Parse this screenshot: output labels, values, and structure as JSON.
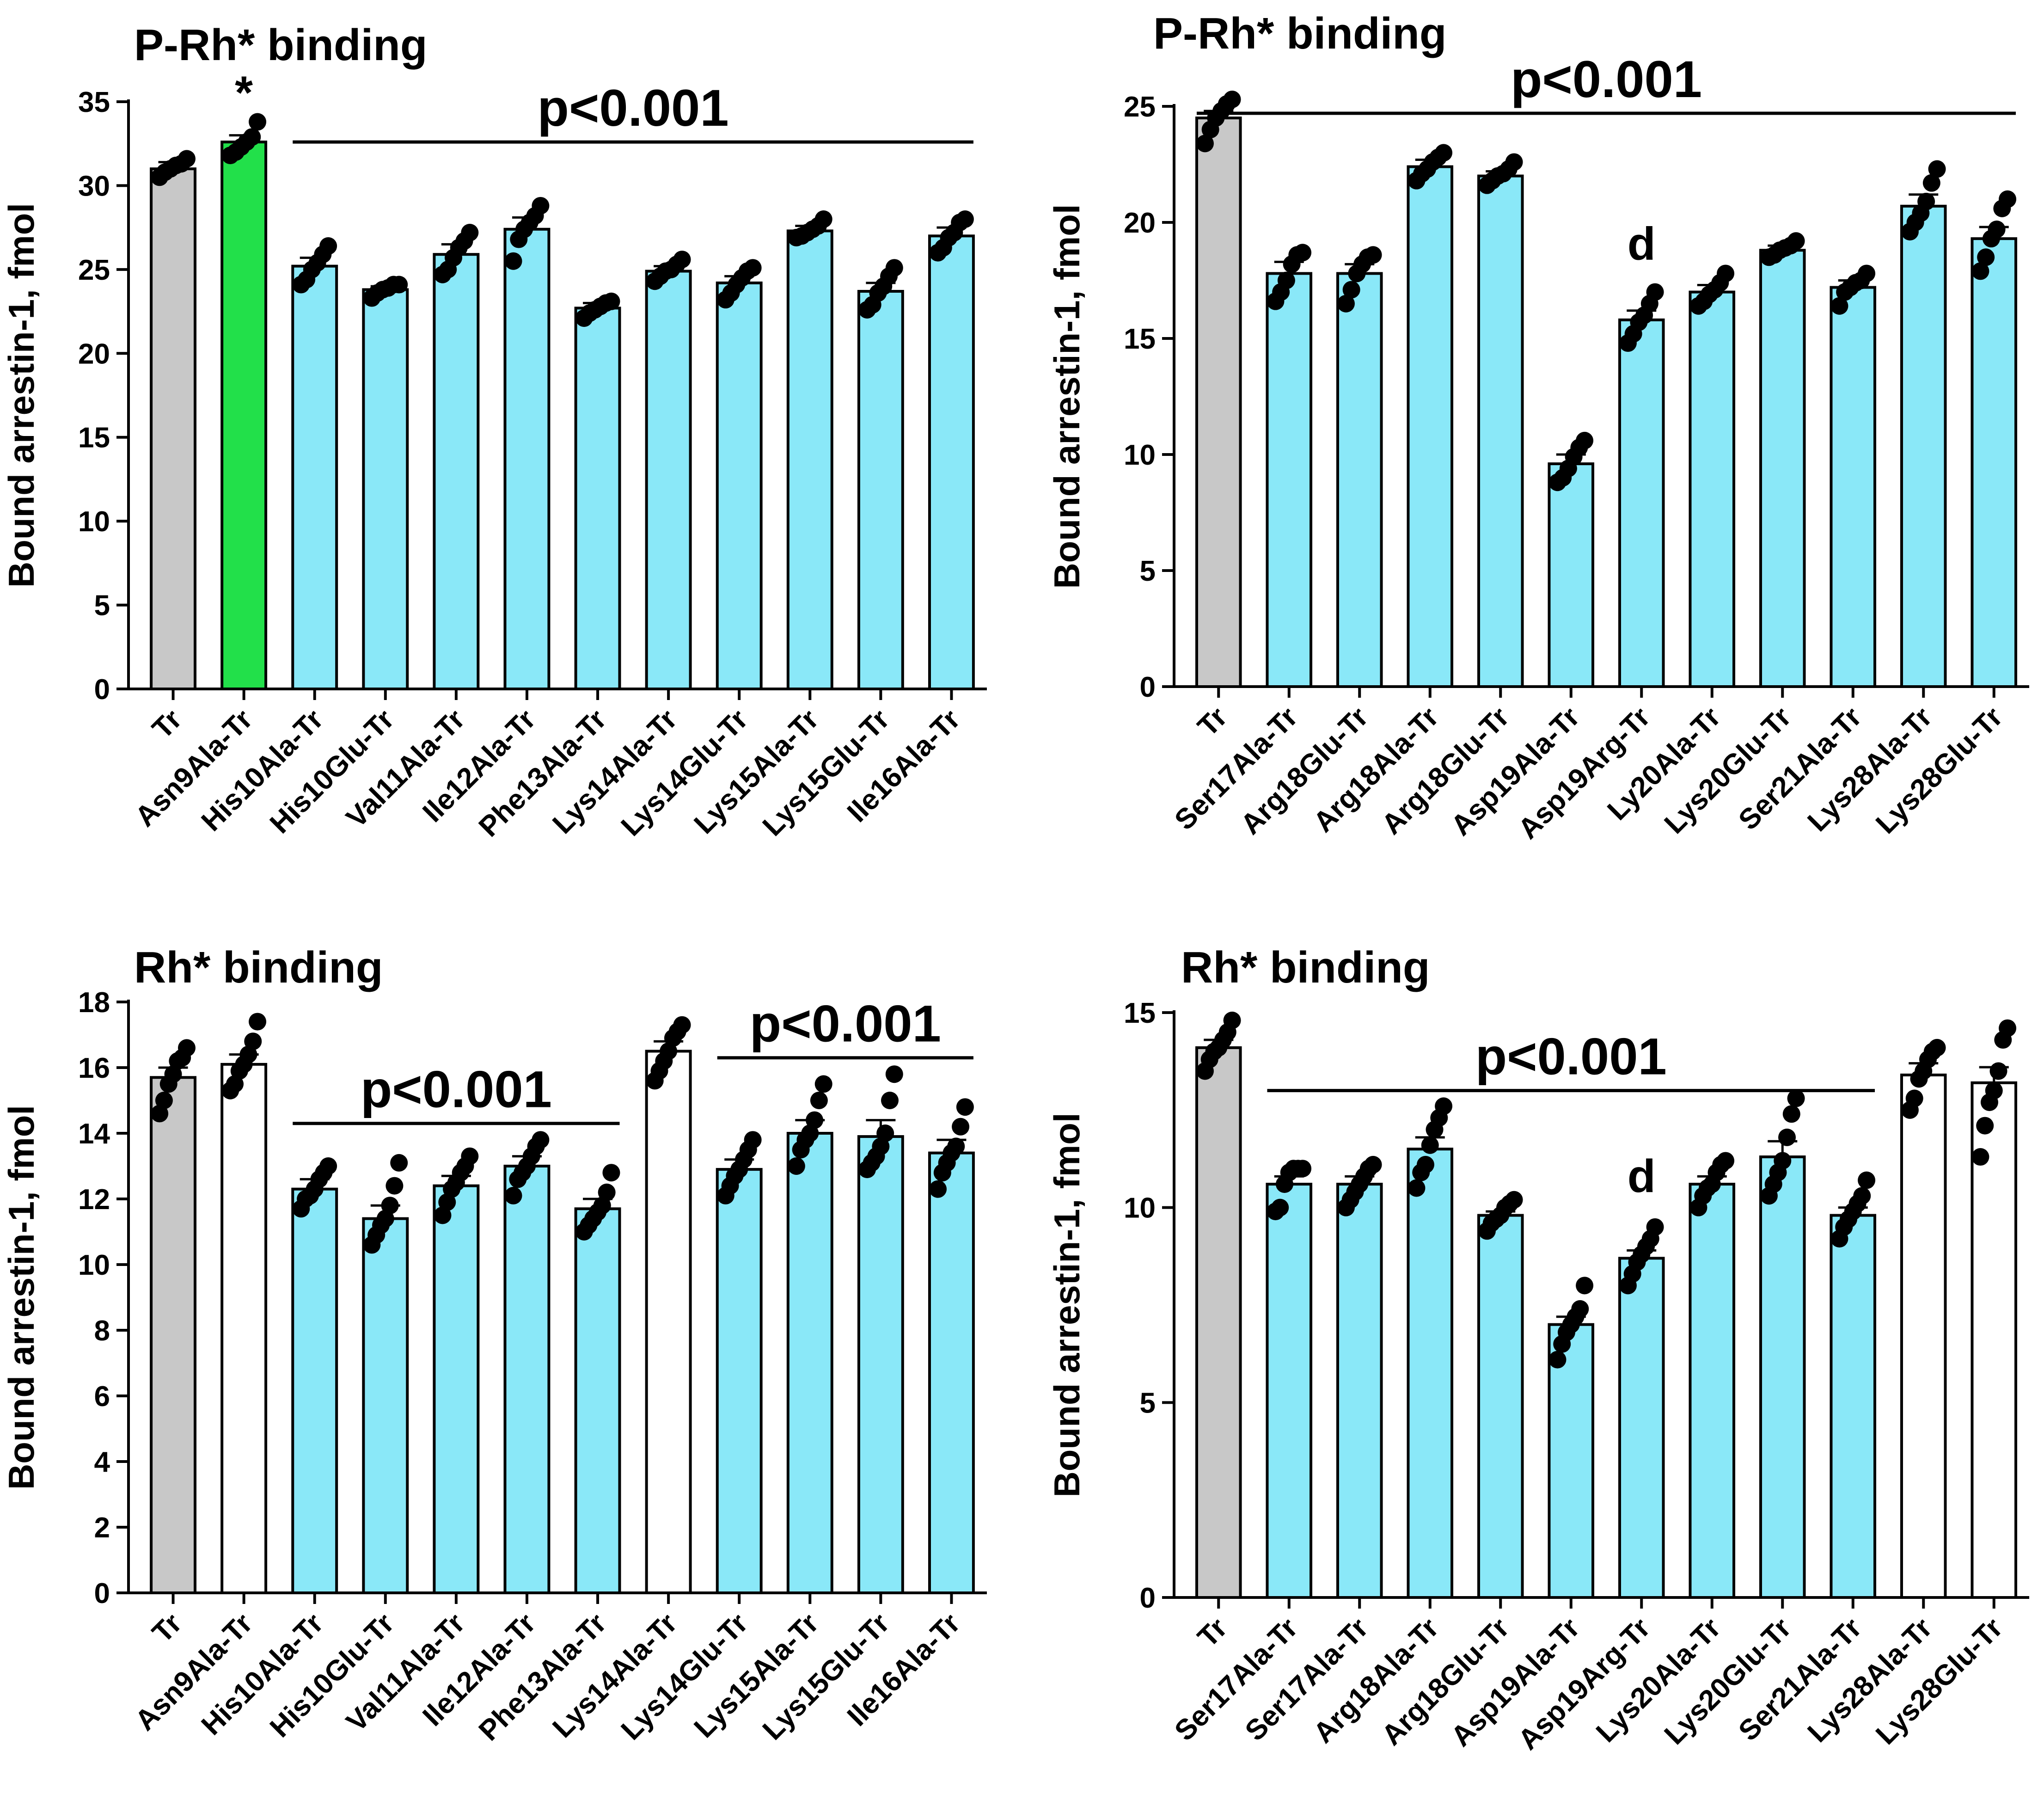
{
  "colors": {
    "control": "#c8c8c8",
    "mutant": "#8ae8f8",
    "enhanced": "#22e04a",
    "white": "#ffffff",
    "ink": "#000000"
  },
  "chart_data": [
    {
      "type": "bar",
      "panel": "top-left",
      "title": "P-Rh* binding",
      "ylabel": "Bound arrestin-1,  fmol",
      "ylim": [
        0,
        35
      ],
      "yticks": [
        0,
        5,
        10,
        15,
        20,
        25,
        30,
        35
      ],
      "categories": [
        "Tr",
        "Asn9Ala-Tr",
        "His10Ala-Tr",
        "His10Glu-Tr",
        "Val11Ala-Tr",
        "Ile12Ala-Tr",
        "Phe13Ala-Tr",
        "Lys14Ala-Tr",
        "Lys14Glu-Tr",
        "Lys15Ala-Tr",
        "Lys15Glu-Tr",
        "Ile16Ala-Tr"
      ],
      "values": [
        31.0,
        32.6,
        25.2,
        23.8,
        25.9,
        27.4,
        22.7,
        24.9,
        24.2,
        27.3,
        23.7,
        27.0
      ],
      "errors": [
        0.4,
        0.4,
        0.5,
        0.2,
        0.6,
        0.7,
        0.3,
        0.3,
        0.4,
        0.3,
        0.5,
        0.5
      ],
      "colors": [
        "control",
        "enhanced",
        "mutant",
        "mutant",
        "mutant",
        "mutant",
        "mutant",
        "mutant",
        "mutant",
        "mutant",
        "mutant",
        "mutant"
      ],
      "points": [
        [
          30.5,
          30.8,
          31.0,
          31.2,
          31.3,
          31.6
        ],
        [
          31.8,
          32.0,
          32.3,
          32.6,
          32.9,
          33.8
        ],
        [
          24.1,
          24.4,
          25.0,
          25.4,
          25.9,
          26.4
        ],
        [
          23.3,
          23.6,
          23.8,
          23.9,
          24.1,
          24.1
        ],
        [
          24.7,
          25.0,
          25.7,
          26.3,
          26.7,
          27.2
        ],
        [
          25.5,
          26.8,
          27.4,
          27.8,
          28.2,
          28.8
        ],
        [
          22.1,
          22.4,
          22.6,
          22.8,
          23.0,
          23.1
        ],
        [
          24.3,
          24.6,
          24.9,
          25.0,
          25.3,
          25.6
        ],
        [
          23.2,
          23.6,
          24.1,
          24.5,
          24.9,
          25.1
        ],
        [
          26.9,
          27.0,
          27.2,
          27.4,
          27.6,
          28.0
        ],
        [
          22.6,
          22.9,
          23.6,
          24.0,
          24.6,
          25.1
        ],
        [
          26.0,
          26.3,
          26.9,
          27.2,
          27.8,
          28.0
        ]
      ],
      "annotations": [
        {
          "text": "*",
          "category": "Asn9Ala-Tr",
          "value": 34.6
        }
      ],
      "sig_lines": [
        {
          "text": "p<0.001",
          "from": "His10Ala-Tr",
          "to": "Ile16Ala-Tr",
          "value": 32.6
        }
      ]
    },
    {
      "type": "bar",
      "panel": "top-right",
      "title": "P-Rh* binding",
      "ylabel": "Bound arrestin-1,  fmol",
      "ylim": [
        0,
        25
      ],
      "yticks": [
        0,
        5,
        10,
        15,
        20,
        25
      ],
      "categories": [
        "Tr",
        "Ser17Ala-Tr",
        "Arg18Glu-Tr",
        "Arg18Ala-Tr",
        "Arg18Glu-Tr",
        "Asp19Ala-Tr",
        "Asp19Arg-Tr",
        "Ly20Ala-Tr",
        "Lys20Glu-Tr",
        "Ser21Ala-Tr",
        "Lys28Ala-Tr",
        "Lys28Glu-Tr"
      ],
      "values": [
        24.5,
        17.8,
        17.8,
        22.4,
        22.0,
        9.6,
        15.8,
        17.0,
        18.8,
        17.2,
        20.7,
        19.3
      ],
      "errors": [
        0.3,
        0.5,
        0.4,
        0.3,
        0.2,
        0.4,
        0.4,
        0.3,
        0.2,
        0.3,
        0.5,
        0.5
      ],
      "colors": [
        "control",
        "mutant",
        "mutant",
        "mutant",
        "mutant",
        "mutant",
        "mutant",
        "mutant",
        "mutant",
        "mutant",
        "mutant",
        "mutant"
      ],
      "points": [
        [
          23.4,
          24.0,
          24.5,
          24.8,
          25.1,
          25.3
        ],
        [
          16.6,
          17.0,
          17.5,
          18.2,
          18.6,
          18.7
        ],
        [
          16.5,
          17.1,
          17.8,
          18.2,
          18.5,
          18.6
        ],
        [
          21.8,
          22.1,
          22.3,
          22.6,
          22.8,
          23.0
        ],
        [
          21.6,
          21.8,
          22.0,
          22.1,
          22.3,
          22.6
        ],
        [
          8.8,
          9.0,
          9.4,
          9.9,
          10.3,
          10.6
        ],
        [
          14.8,
          15.2,
          15.7,
          16.0,
          16.5,
          17.0
        ],
        [
          16.4,
          16.6,
          16.9,
          17.1,
          17.4,
          17.8
        ],
        [
          18.5,
          18.6,
          18.8,
          18.9,
          19.0,
          19.2
        ],
        [
          16.4,
          17.0,
          17.2,
          17.4,
          17.5,
          17.8
        ],
        [
          19.6,
          20.0,
          20.4,
          20.9,
          21.7,
          22.3
        ],
        [
          17.9,
          18.5,
          19.3,
          19.7,
          20.6,
          21.0
        ]
      ],
      "annotations": [
        {
          "text": "d",
          "category": "Asp19Arg-Tr",
          "value": 18.4
        }
      ],
      "sig_lines": [
        {
          "text": "p<0.001",
          "from": "Tr",
          "to": "Lys28Glu-Tr",
          "value": 24.7
        }
      ]
    },
    {
      "type": "bar",
      "panel": "bottom-left",
      "title": "Rh* binding",
      "ylabel": "Bound arrestin-1,  fmol",
      "ylim": [
        0,
        18
      ],
      "yticks": [
        0,
        2,
        4,
        6,
        8,
        10,
        12,
        14,
        16,
        18
      ],
      "categories": [
        "Tr",
        "Asn9Ala-Tr",
        "His10Ala-Tr",
        "His10Glu-Tr",
        "Val11Ala-Tr",
        "Ile12Ala-Tr",
        "Phe13Ala-Tr",
        "Lys14Ala-Tr",
        "Lys14Glu-Tr",
        "Lys15Ala-Tr",
        "Lys15Glu-Tr",
        "Ile16Ala-Tr"
      ],
      "values": [
        15.7,
        16.1,
        12.3,
        11.4,
        12.4,
        13.0,
        11.7,
        16.5,
        12.9,
        14.0,
        13.9,
        13.4
      ],
      "errors": [
        0.3,
        0.3,
        0.3,
        0.4,
        0.3,
        0.3,
        0.3,
        0.3,
        0.3,
        0.4,
        0.5,
        0.4
      ],
      "colors": [
        "control",
        "white",
        "mutant",
        "mutant",
        "mutant",
        "mutant",
        "mutant",
        "white",
        "mutant",
        "mutant",
        "mutant",
        "mutant"
      ],
      "points": [
        [
          14.6,
          15.0,
          15.5,
          15.8,
          16.2,
          16.3,
          16.6
        ],
        [
          15.3,
          15.5,
          15.9,
          16.1,
          16.4,
          16.8,
          17.4
        ],
        [
          11.7,
          12.0,
          12.1,
          12.3,
          12.6,
          12.8,
          13.0
        ],
        [
          10.6,
          10.9,
          11.2,
          11.4,
          11.8,
          12.4,
          13.1
        ],
        [
          11.5,
          11.9,
          12.3,
          12.5,
          12.8,
          13.0,
          13.3
        ],
        [
          12.1,
          12.6,
          12.8,
          13.0,
          13.3,
          13.6,
          13.8
        ],
        [
          11.0,
          11.2,
          11.4,
          11.6,
          11.8,
          12.2,
          12.8
        ],
        [
          15.6,
          15.9,
          16.2,
          16.5,
          16.9,
          17.1,
          17.3
        ],
        [
          12.1,
          12.4,
          12.7,
          12.9,
          13.2,
          13.5,
          13.8
        ],
        [
          13.0,
          13.5,
          13.8,
          14.0,
          14.4,
          15.0,
          15.5
        ],
        [
          12.9,
          13.1,
          13.3,
          13.6,
          14.0,
          15.0,
          15.8
        ],
        [
          12.3,
          12.8,
          13.1,
          13.4,
          13.6,
          14.2,
          14.8
        ]
      ],
      "annotations": [],
      "sig_lines": [
        {
          "text": "p<0.001",
          "from": "His10Ala-Tr",
          "to": "Phe13Ala-Tr",
          "value": 14.3
        },
        {
          "text": "p<0.001",
          "from": "Lys14Glu-Tr",
          "to": "Ile16Ala-Tr",
          "value": 16.3
        }
      ]
    },
    {
      "type": "bar",
      "panel": "bottom-right",
      "title": "Rh* binding",
      "ylabel": "Bound arrestin-1,  fmol",
      "ylim": [
        0,
        15
      ],
      "yticks": [
        0,
        5,
        10,
        15
      ],
      "categories": [
        "Tr",
        "Ser17Ala-Tr",
        "Ser17Ala-Tr",
        "Arg18Ala-Tr",
        "Arg18Glu-Tr",
        "Asp19Ala-Tr",
        "Asp19Arg-Tr",
        "Lys20Ala-Tr",
        "Lys20Glu-Tr",
        "Ser21Ala-Tr",
        "Lys28Ala-Tr",
        "Lys28Glu-Tr"
      ],
      "values": [
        14.1,
        10.6,
        10.6,
        11.5,
        9.8,
        7.0,
        8.7,
        10.6,
        11.3,
        9.8,
        13.4,
        13.2
      ],
      "errors": [
        0.2,
        0.2,
        0.2,
        0.3,
        0.1,
        0.2,
        0.2,
        0.2,
        0.4,
        0.2,
        0.3,
        0.4
      ],
      "colors": [
        "control",
        "mutant",
        "mutant",
        "mutant",
        "mutant",
        "mutant",
        "mutant",
        "mutant",
        "mutant",
        "mutant",
        "white",
        "white"
      ],
      "points": [
        [
          13.5,
          13.8,
          14.0,
          14.1,
          14.3,
          14.5,
          14.8
        ],
        [
          9.9,
          10.0,
          10.6,
          10.9,
          11.0,
          11.0,
          11.0
        ],
        [
          10.0,
          10.2,
          10.4,
          10.6,
          10.8,
          11.0,
          11.1
        ],
        [
          10.5,
          10.9,
          11.1,
          11.6,
          12.0,
          12.3,
          12.6
        ],
        [
          9.4,
          9.6,
          9.7,
          9.8,
          10.0,
          10.1,
          10.2
        ],
        [
          6.1,
          6.5,
          6.8,
          7.0,
          7.2,
          7.4,
          8.0
        ],
        [
          8.0,
          8.3,
          8.6,
          8.8,
          9.0,
          9.2,
          9.5
        ],
        [
          10.0,
          10.3,
          10.5,
          10.6,
          10.9,
          11.1,
          11.2
        ],
        [
          10.3,
          10.6,
          10.9,
          11.2,
          11.8,
          12.4,
          12.8
        ],
        [
          9.2,
          9.5,
          9.7,
          9.9,
          10.1,
          10.3,
          10.7
        ],
        [
          12.5,
          12.8,
          13.3,
          13.5,
          13.8,
          14.0,
          14.1
        ],
        [
          11.3,
          12.1,
          12.7,
          13.0,
          13.5,
          14.3,
          14.6
        ]
      ],
      "annotations": [
        {
          "text": "d",
          "category": "Asp19Arg-Tr",
          "value": 10.4
        }
      ],
      "sig_lines": [
        {
          "text": "p<0.001",
          "from": "Ser17Ala-Tr",
          "to": "Ser21Ala-Tr",
          "value": 13.0
        }
      ]
    }
  ]
}
